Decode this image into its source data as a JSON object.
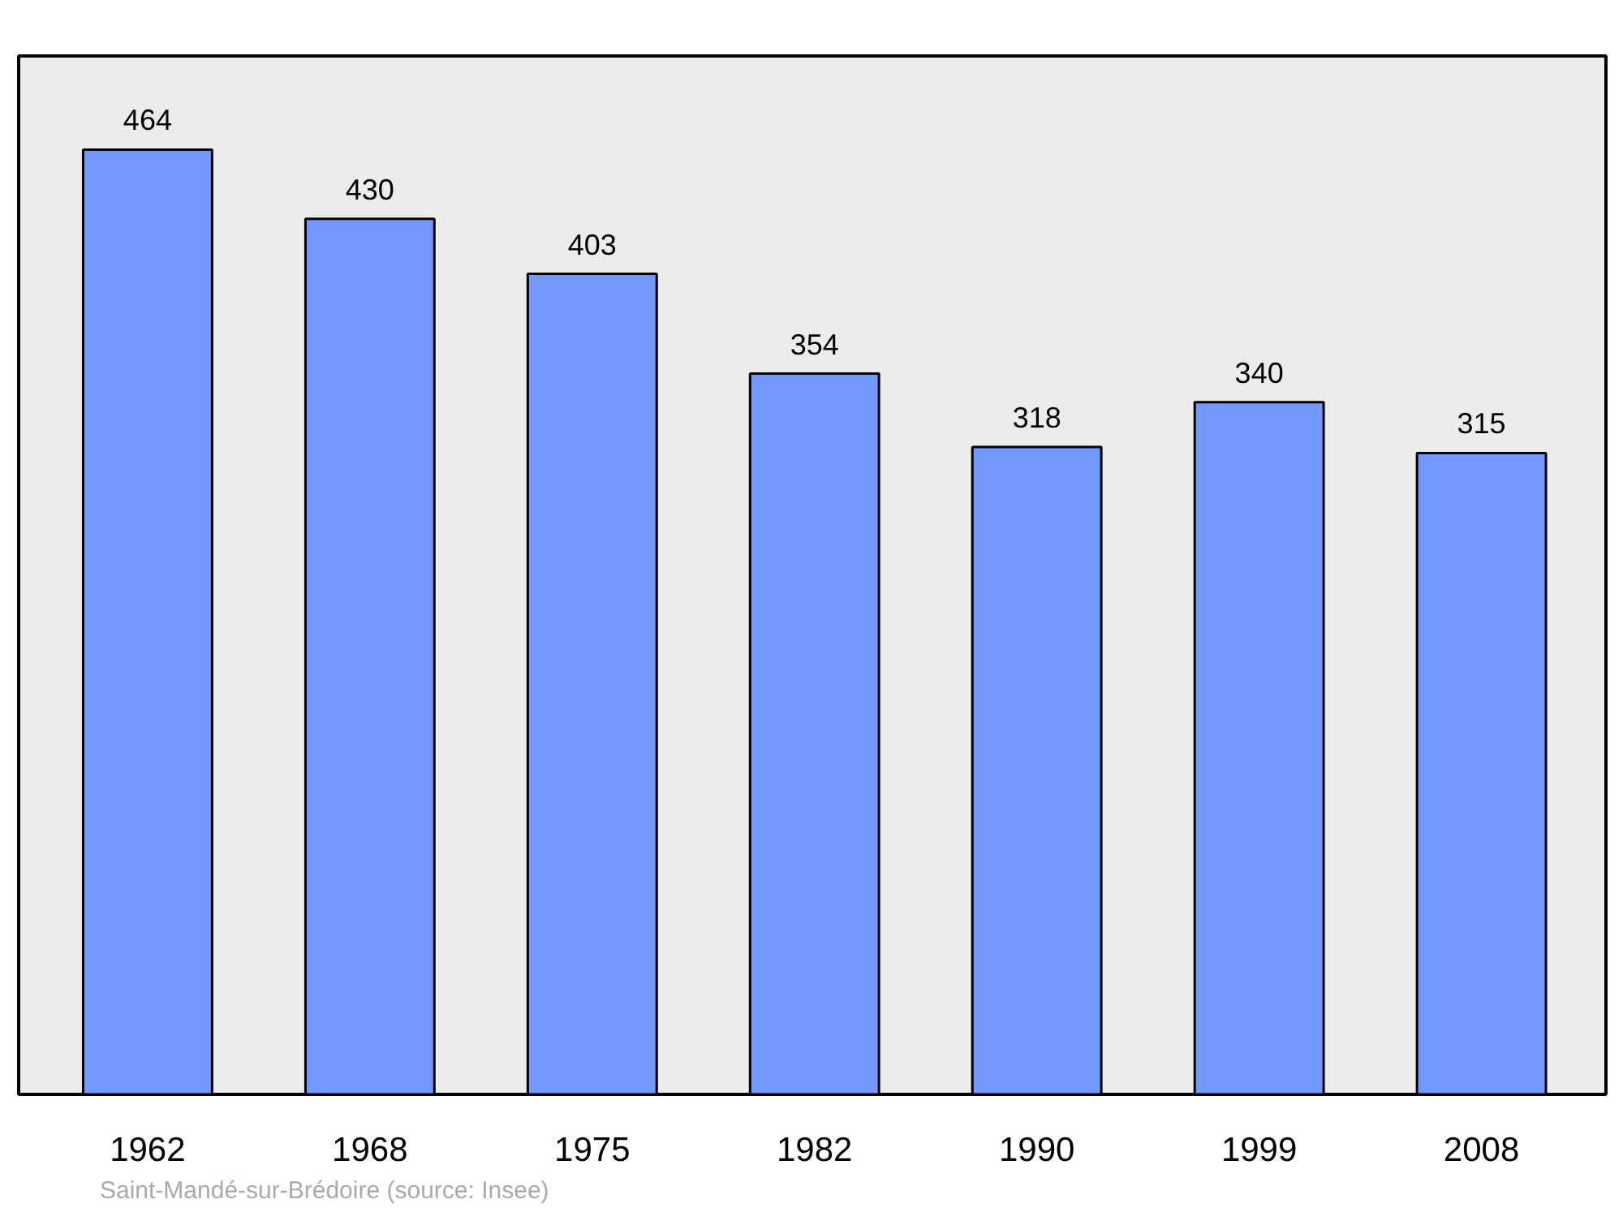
{
  "chart_data": {
    "type": "bar",
    "categories": [
      "1962",
      "1968",
      "1975",
      "1982",
      "1990",
      "1999",
      "2008"
    ],
    "values": [
      464,
      430,
      403,
      354,
      318,
      340,
      315
    ],
    "color": "#7399ff",
    "ylim": [
      0,
      510
    ],
    "tick_labels": "x",
    "data_labels": true,
    "annotations": [
      "Saint-Mandé-sur-Brédoire    (source: Insee)"
    ]
  }
}
